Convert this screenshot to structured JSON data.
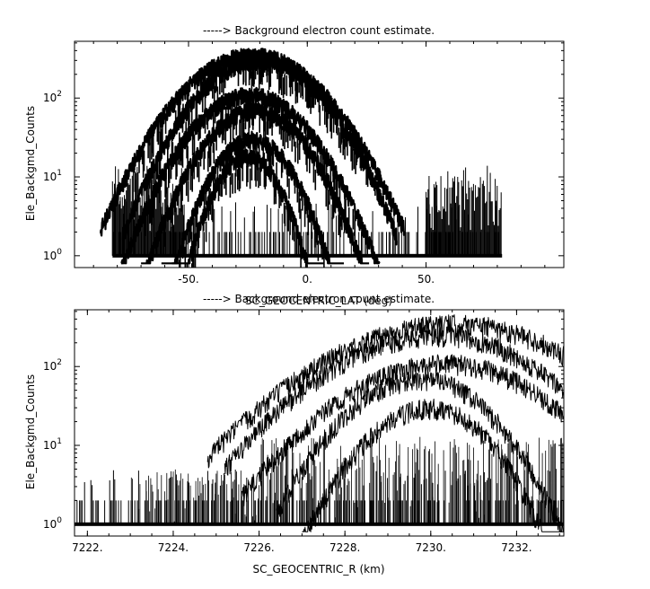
{
  "chart_data": [
    {
      "type": "line",
      "title": "-----> Background electron count estimate.",
      "xlabel": "SC_GEOCENTRIC_LAT (deg)",
      "ylabel": "Ele_Backgmd_Counts",
      "xlim": [
        -98,
        108
      ],
      "ylim_log10": [
        -0.15,
        2.72
      ],
      "y_scale": "log",
      "x_tick_labels": [
        "-50.",
        "0.",
        "50."
      ],
      "x_ticks": [
        -50,
        0,
        50
      ],
      "y_tick_labels": [
        {
          "base": "10",
          "exp": "0",
          "value": 1
        },
        {
          "base": "10",
          "exp": "1",
          "value": 10
        },
        {
          "base": "10",
          "exp": "2",
          "value": 100
        }
      ],
      "series": [
        {
          "peak_x": -23,
          "peak": 350,
          "sigma": 20
        },
        {
          "peak_x": -20,
          "peak": 300,
          "sigma": 18
        },
        {
          "peak_x": -24,
          "peak": 110,
          "sigma": 17
        },
        {
          "peak_x": -22,
          "peak": 70,
          "sigma": 15
        },
        {
          "peak_x": -23,
          "peak": 30,
          "sigma": 12
        },
        {
          "peak_x": -25,
          "peak": 18,
          "sigma": 10
        }
      ],
      "noise_ranges": [
        {
          "x_from": -82,
          "x_to": -52,
          "level": 5
        },
        {
          "x_from": 50,
          "x_to": 82,
          "level": 5
        }
      ],
      "grid": false,
      "legend": "none"
    },
    {
      "type": "line",
      "title": "-----> Background electron count estimate.",
      "xlabel": "SC_GEOCENTRIC_R (km)",
      "ylabel": "Ele_Backgmd_Counts",
      "xlim": [
        7221.7,
        7233.1
      ],
      "ylim_log10": [
        -0.15,
        2.72
      ],
      "y_scale": "log",
      "x_tick_labels": [
        "7222.",
        "7224.",
        "7226.",
        "7228.",
        "7230.",
        "7232."
      ],
      "x_ticks": [
        7222,
        7224,
        7226,
        7228,
        7230,
        7232
      ],
      "y_tick_labels": [
        {
          "base": "10",
          "exp": "0",
          "value": 1
        },
        {
          "base": "10",
          "exp": "1",
          "value": 10
        },
        {
          "base": "10",
          "exp": "2",
          "value": 100
        }
      ],
      "series": [
        {
          "peak_x": 7230.6,
          "peak": 350,
          "start": 7224.8,
          "end": 7233.1
        },
        {
          "peak_x": 7230.2,
          "peak": 250,
          "start": 7225.2,
          "end": 7233.1
        },
        {
          "peak_x": 7230.4,
          "peak": 110,
          "start": 7225.6,
          "end": 7233.1
        },
        {
          "peak_x": 7229.8,
          "peak": 70,
          "start": 7226.4,
          "end": 7233.1
        },
        {
          "peak_x": 7230.0,
          "peak": 30,
          "start": 7227.0,
          "end": 7233.1
        }
      ],
      "grid": false,
      "legend": "none"
    }
  ]
}
